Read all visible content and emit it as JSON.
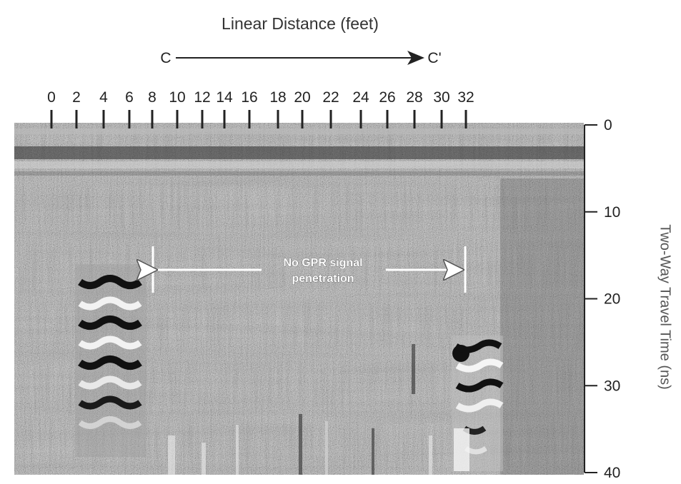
{
  "title": "Linear Distance (feet)",
  "section": {
    "start": "C",
    "end": "C'"
  },
  "x_axis": {
    "ticks": [
      "0",
      "2",
      "4",
      "6",
      "8",
      "10",
      "12",
      "14",
      "16",
      "18",
      "20",
      "22",
      "24",
      "26",
      "28",
      "30",
      "32"
    ]
  },
  "y_axis": {
    "label": "Two-Way Travel Time (ns)",
    "ticks": [
      "0",
      "10",
      "20",
      "30",
      "40"
    ]
  },
  "annotation": {
    "line1": "No GPR signal",
    "line2": "penetration"
  },
  "colors": {
    "ink": "#222222",
    "radargram_base": "#8a8a8a",
    "annotation_text": "#ffffff"
  }
}
